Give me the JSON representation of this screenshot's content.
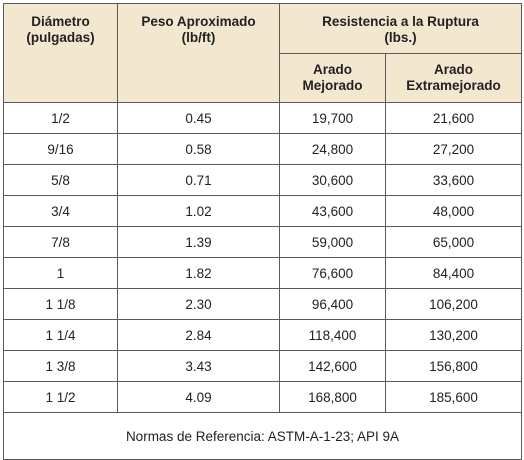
{
  "table": {
    "header": {
      "diameter": "Diámetro\n(pulgadas)",
      "weight": "Peso Aproximado\n(lb/ft)",
      "strength": "Resistencia a la Ruptura\n(lbs.)",
      "improved": "Arado\nMejorado",
      "extra": "Arado\nExtramejorado"
    },
    "rows": [
      [
        "1/2",
        "0.45",
        "19,700",
        "21,600"
      ],
      [
        "9/16",
        "0.58",
        "24,800",
        "27,200"
      ],
      [
        "5/8",
        "0.71",
        "30,600",
        "33,600"
      ],
      [
        "3/4",
        "1.02",
        "43,600",
        "48,000"
      ],
      [
        "7/8",
        "1.39",
        "59,000",
        "65,000"
      ],
      [
        "1",
        "1.82",
        "76,600",
        "84,400"
      ],
      [
        "1 1/8",
        "2.30",
        "96,400",
        "106,200"
      ],
      [
        "1 1/4",
        "2.84",
        "118,400",
        "130,200"
      ],
      [
        "1 3/8",
        "3.43",
        "142,600",
        "156,800"
      ],
      [
        "1 1/2",
        "4.09",
        "168,800",
        "185,600"
      ]
    ],
    "footer": "Normas de Referencia:  ASTM-A-1-23; API 9A"
  }
}
